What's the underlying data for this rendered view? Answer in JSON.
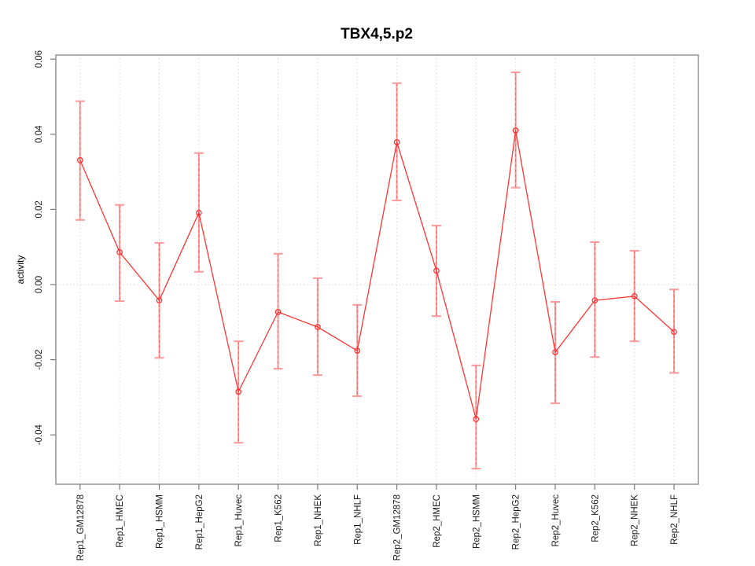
{
  "chart_data": {
    "type": "line",
    "title": "TBX4,5.p2",
    "xlabel": "",
    "ylabel": "activity",
    "categories": [
      "Rep1_GM12878",
      "Rep1_HMEC",
      "Rep1_HSMM",
      "Rep1_HepG2",
      "Rep1_Huvec",
      "Rep1_K562",
      "Rep1_NHEK",
      "Rep1_NHLF",
      "Rep2_GM12878",
      "Rep2_HMEC",
      "Rep2_HSMM",
      "Rep2_HepG2",
      "Rep2_Huvec",
      "Rep2_K562",
      "Rep2_NHEK",
      "Rep2_NHLF"
    ],
    "series": [
      {
        "name": "activity",
        "values": [
          0.0331,
          0.0086,
          -0.0042,
          0.0191,
          -0.0285,
          -0.0073,
          -0.0113,
          -0.0176,
          0.0379,
          0.0037,
          -0.0358,
          0.041,
          -0.018,
          -0.0042,
          -0.0031,
          -0.0126
        ],
        "ci_low": [
          0.0172,
          -0.0044,
          -0.0195,
          0.0034,
          -0.0421,
          -0.0224,
          -0.0241,
          -0.0297,
          0.0224,
          -0.0084,
          -0.049,
          0.0258,
          -0.0316,
          -0.0193,
          -0.0151,
          -0.0235
        ],
        "ci_high": [
          0.0488,
          0.0212,
          0.0111,
          0.035,
          -0.0151,
          0.0082,
          0.0017,
          -0.0054,
          0.0536,
          0.0157,
          -0.0215,
          0.0565,
          -0.0046,
          0.0113,
          0.009,
          -0.0013
        ]
      }
    ],
    "error_bars": true,
    "ylim": [
      -0.0528,
      0.0609
    ],
    "yticks": [
      {
        "value": 0.06,
        "label": "0.06"
      },
      {
        "value": 0.04,
        "label": "0.04"
      },
      {
        "value": 0.02,
        "label": "0.02"
      },
      {
        "value": 0.0,
        "label": "0.00"
      },
      {
        "value": -0.02,
        "label": "-0.02"
      },
      {
        "value": -0.04,
        "label": "-0.04"
      }
    ],
    "grid": {
      "vertical_per_category": true,
      "horizontal_zero_line": true,
      "style": "dotted"
    },
    "legend": "none",
    "colors": {
      "line": "#ff3333",
      "point": "#ff3333",
      "error_bar": "#ff9898",
      "error_accent": "#ff5c5c",
      "grid": "#d8d8d8",
      "box": "#999999",
      "tick": "#7a7a7a",
      "text": "#000000",
      "background": "#ffffff"
    }
  }
}
